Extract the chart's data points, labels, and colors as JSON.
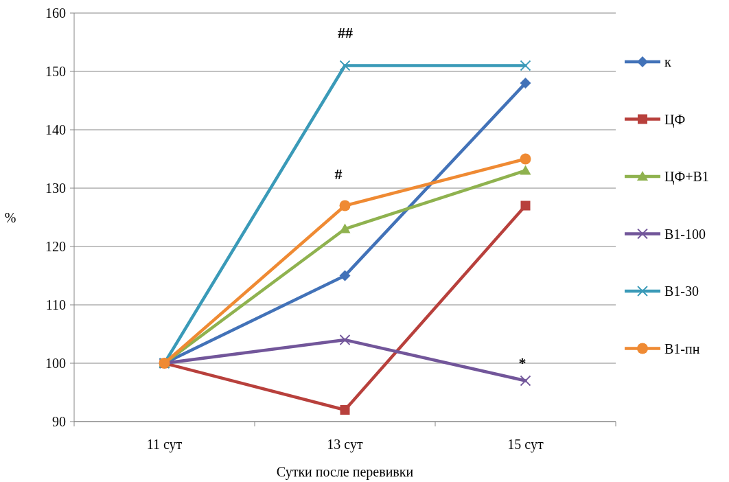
{
  "chart_data": {
    "type": "line",
    "xlabel": "Сутки после перевивки",
    "ylabel": "%",
    "categories": [
      "11 сут",
      "13 сут",
      "15 сут"
    ],
    "series": [
      {
        "name": "к",
        "color": "#4272b8",
        "marker": "diamond",
        "values": [
          100,
          115,
          148
        ]
      },
      {
        "name": "ЦФ",
        "color": "#b8403c",
        "marker": "square",
        "values": [
          100,
          92,
          127
        ]
      },
      {
        "name": "ЦФ+В1",
        "color": "#8fb24f",
        "marker": "triangle",
        "values": [
          100,
          123,
          133
        ]
      },
      {
        "name": "В1-100",
        "color": "#72569a",
        "marker": "cross",
        "values": [
          100,
          104,
          97
        ]
      },
      {
        "name": "В1-30",
        "color": "#3a9ab8",
        "marker": "cross",
        "values": [
          100,
          151,
          151
        ]
      },
      {
        "name": "В1-пн",
        "color": "#ef8a33",
        "marker": "circle",
        "values": [
          100,
          127,
          135
        ]
      }
    ],
    "ylim": [
      90,
      160
    ],
    "yticks": [
      90,
      100,
      110,
      120,
      130,
      140,
      150,
      160
    ],
    "grid": "y",
    "legend": "right",
    "annotations": [
      "##",
      "#",
      "*"
    ]
  }
}
